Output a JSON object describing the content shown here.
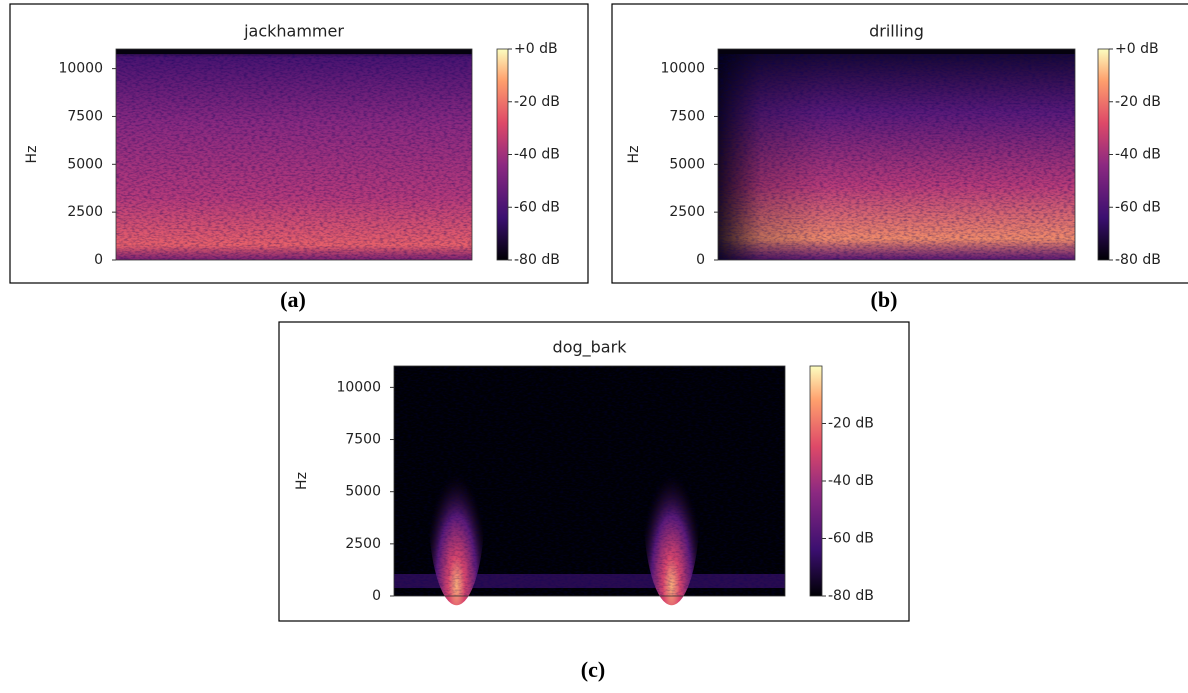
{
  "chart_data": [
    {
      "type": "heatmap",
      "title": "jackhammer",
      "ylabel": "Hz",
      "panel_label": "(a)",
      "ylim": [
        0,
        11025
      ],
      "yticks": [
        0,
        2500,
        5000,
        7500,
        10000
      ],
      "clim": [
        -80,
        0
      ],
      "cticks": [
        {
          "value": 0,
          "label": "+0 dB"
        },
        {
          "value": -20,
          "label": "-20 dB"
        },
        {
          "value": -40,
          "label": "-40 dB"
        },
        {
          "value": -60,
          "label": "-60 dB"
        },
        {
          "value": -80,
          "label": "-80 dB"
        }
      ]
    },
    {
      "type": "heatmap",
      "title": "drilling",
      "ylabel": "Hz",
      "panel_label": "(b)",
      "ylim": [
        0,
        11025
      ],
      "yticks": [
        0,
        2500,
        5000,
        7500,
        10000
      ],
      "clim": [
        -80,
        0
      ],
      "cticks": [
        {
          "value": 0,
          "label": "+0 dB"
        },
        {
          "value": -20,
          "label": "-20 dB"
        },
        {
          "value": -40,
          "label": "-40 dB"
        },
        {
          "value": -60,
          "label": "-60 dB"
        },
        {
          "value": -80,
          "label": "-80 dB"
        }
      ]
    },
    {
      "type": "heatmap",
      "title": "dog_bark",
      "ylabel": "Hz",
      "panel_label": "(c)",
      "ylim": [
        0,
        11025
      ],
      "yticks": [
        0,
        2500,
        5000,
        7500,
        10000
      ],
      "clim": [
        -80,
        0
      ],
      "cticks": [
        {
          "value": -20,
          "label": "-20 dB"
        },
        {
          "value": -40,
          "label": "-40 dB"
        },
        {
          "value": -60,
          "label": "-60 dB"
        },
        {
          "value": -80,
          "label": "-80 dB"
        }
      ]
    }
  ]
}
